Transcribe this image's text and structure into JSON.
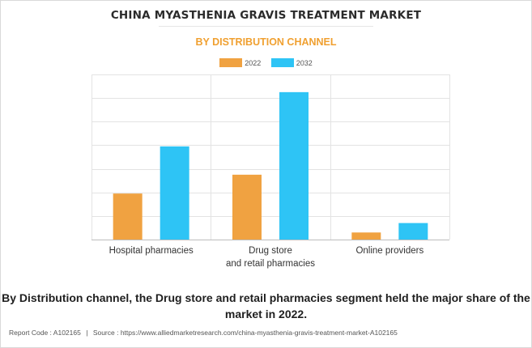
{
  "title": "CHINA MYASTHENIA GRAVIS TREATMENT MARKET",
  "subtitle": "BY DISTRIBUTION CHANNEL",
  "insight": "By Distribution channel, the Drug store and retail pharmacies segment held the major share of the market in 2022.",
  "footer": {
    "report_code": "Report Code : A102165",
    "separator": "|",
    "source": "Source : https://www.alliedmarketresearch.com/china-myasthenia-gravis-treatment-market-A102165"
  },
  "colors": {
    "2022": "#f0a241",
    "2032": "#2ec4f5",
    "grid": "#e3e3e3",
    "axis": "#bdbdbd",
    "subtitle": "#f0a030"
  },
  "chart_data": {
    "type": "bar",
    "categories": [
      [
        "Hospital pharmacies"
      ],
      [
        "Drug store",
        "and retail pharmacies"
      ],
      [
        "Online providers"
      ]
    ],
    "series": [
      {
        "name": "2022",
        "values": [
          19.5,
          27.5,
          3.0
        ]
      },
      {
        "name": "2032",
        "values": [
          39.5,
          62.5,
          7.0
        ]
      }
    ],
    "ylim": [
      0,
      70
    ],
    "yticks": [
      0,
      10,
      20,
      30,
      40,
      50,
      60,
      70
    ],
    "show_y_tick_labels": false,
    "grid": true,
    "legend_position": "top-center",
    "xlabel": "",
    "ylabel": ""
  }
}
